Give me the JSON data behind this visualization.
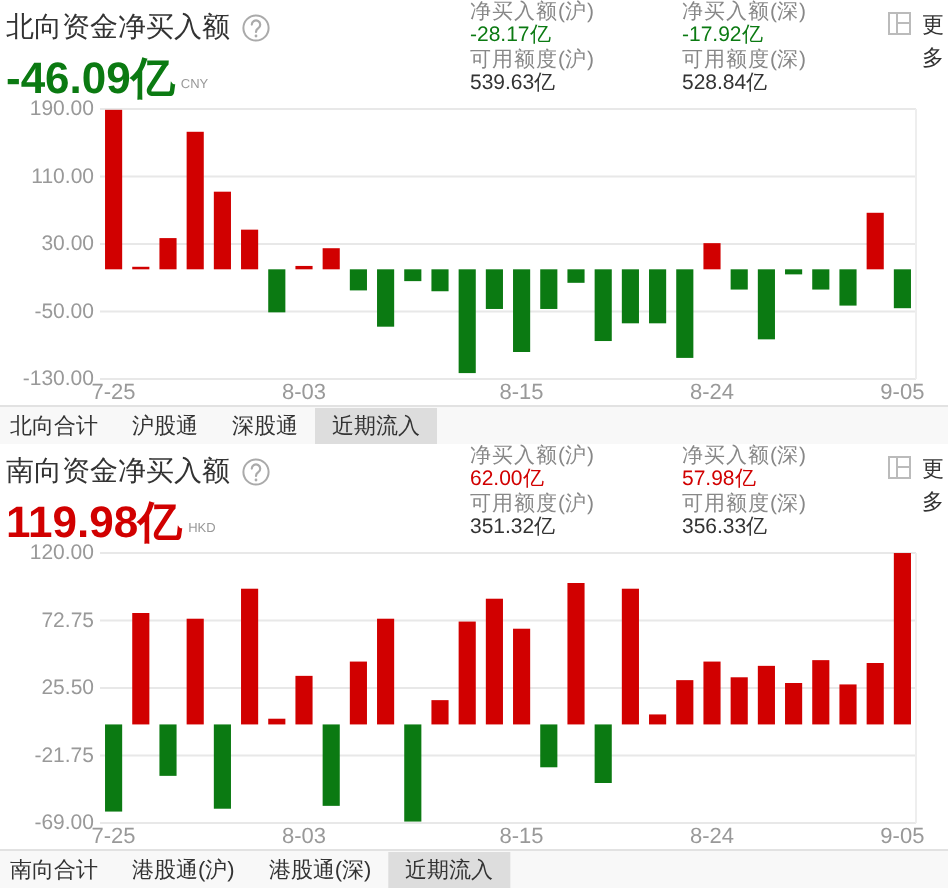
{
  "chart_data": [
    {
      "type": "bar",
      "title": "北向资金净买入额",
      "subtitle": "-46.09亿",
      "categories": [
        "7-25",
        null,
        null,
        null,
        null,
        null,
        null,
        "8-03",
        null,
        null,
        null,
        null,
        null,
        null,
        null,
        "8-15",
        null,
        null,
        null,
        null,
        null,
        null,
        "8-24",
        null,
        null,
        null,
        null,
        null,
        null,
        "9-05"
      ],
      "values": [
        189,
        3,
        37,
        163,
        92,
        47,
        -51,
        4,
        25,
        -25,
        -68,
        -14,
        -26,
        -123,
        -47,
        -98,
        -47,
        -16,
        -85,
        -64,
        -64,
        -105,
        31,
        -24,
        -83,
        -6,
        -24,
        -43,
        67,
        -46.09
      ],
      "colors": [
        "#d10000",
        "#d10000",
        "#d10000",
        "#d10000",
        "#d10000",
        "#d10000",
        "#0b7a12",
        "#d10000",
        "#d10000",
        "#0b7a12",
        "#0b7a12",
        "#0b7a12",
        "#0b7a12",
        "#0b7a12",
        "#0b7a12",
        "#0b7a12",
        "#0b7a12",
        "#0b7a12",
        "#0b7a12",
        "#0b7a12",
        "#0b7a12",
        "#0b7a12",
        "#d10000",
        "#0b7a12",
        "#0b7a12",
        "#0b7a12",
        "#0b7a12",
        "#0b7a12",
        "#d10000",
        "#0b7a12"
      ],
      "ylim": [
        -130,
        190
      ],
      "yticks": [
        {
          "value": 190,
          "label": "190.00"
        },
        {
          "value": 110,
          "label": "110.00"
        },
        {
          "value": 30,
          "label": "30.00"
        },
        {
          "value": -50,
          "label": "-50.00"
        },
        {
          "value": -130,
          "label": "-130.00"
        }
      ],
      "grid": "y",
      "annotations": [
        "CNY",
        "净买入额(沪)",
        "-28.17亿",
        "净买入额(深)",
        "-17.92亿",
        "可用额度(沪)",
        "539.63亿",
        "可用额度(深)",
        "528.84亿",
        "北向合计",
        "沪股通",
        "深股通",
        "近期流入",
        "更多"
      ]
    },
    {
      "type": "bar",
      "title": "南向资金净买入额",
      "subtitle": "119.98亿",
      "categories": [
        "7-25",
        null,
        null,
        null,
        null,
        null,
        null,
        "8-03",
        null,
        null,
        null,
        null,
        null,
        null,
        null,
        "8-15",
        null,
        null,
        null,
        null,
        null,
        null,
        "8-24",
        null,
        null,
        null,
        null,
        null,
        null,
        "9-05"
      ],
      "values": [
        -61,
        78,
        -36,
        74,
        -59,
        95,
        4,
        34,
        -57,
        44,
        74,
        -68,
        17,
        72,
        88,
        67,
        -30,
        99,
        -41,
        95,
        7,
        31,
        44,
        33,
        41,
        29,
        45,
        28,
        43,
        119.98
      ],
      "colors": [
        "#0b7a12",
        "#d10000",
        "#0b7a12",
        "#d10000",
        "#0b7a12",
        "#d10000",
        "#d10000",
        "#d10000",
        "#0b7a12",
        "#d10000",
        "#d10000",
        "#0b7a12",
        "#d10000",
        "#d10000",
        "#d10000",
        "#d10000",
        "#0b7a12",
        "#d10000",
        "#0b7a12",
        "#d10000",
        "#d10000",
        "#d10000",
        "#d10000",
        "#d10000",
        "#d10000",
        "#d10000",
        "#d10000",
        "#d10000",
        "#d10000",
        "#d10000"
      ],
      "ylim": [
        -69,
        120
      ],
      "yticks": [
        {
          "value": 120,
          "label": "120.00"
        },
        {
          "value": 72.75,
          "label": "72.75"
        },
        {
          "value": 25.5,
          "label": "25.50"
        },
        {
          "value": -21.75,
          "label": "-21.75"
        },
        {
          "value": -69,
          "label": "-69.00"
        }
      ],
      "grid": "y",
      "annotations": [
        "HKD",
        "净买入额(沪)",
        "62.00亿",
        "净买入额(深)",
        "57.98亿",
        "可用额度(沪)",
        "351.32亿",
        "可用额度(深)",
        "356.33亿",
        "南向合计",
        "港股通(沪)",
        "港股通(深)",
        "近期流入",
        "更多"
      ]
    }
  ]
}
